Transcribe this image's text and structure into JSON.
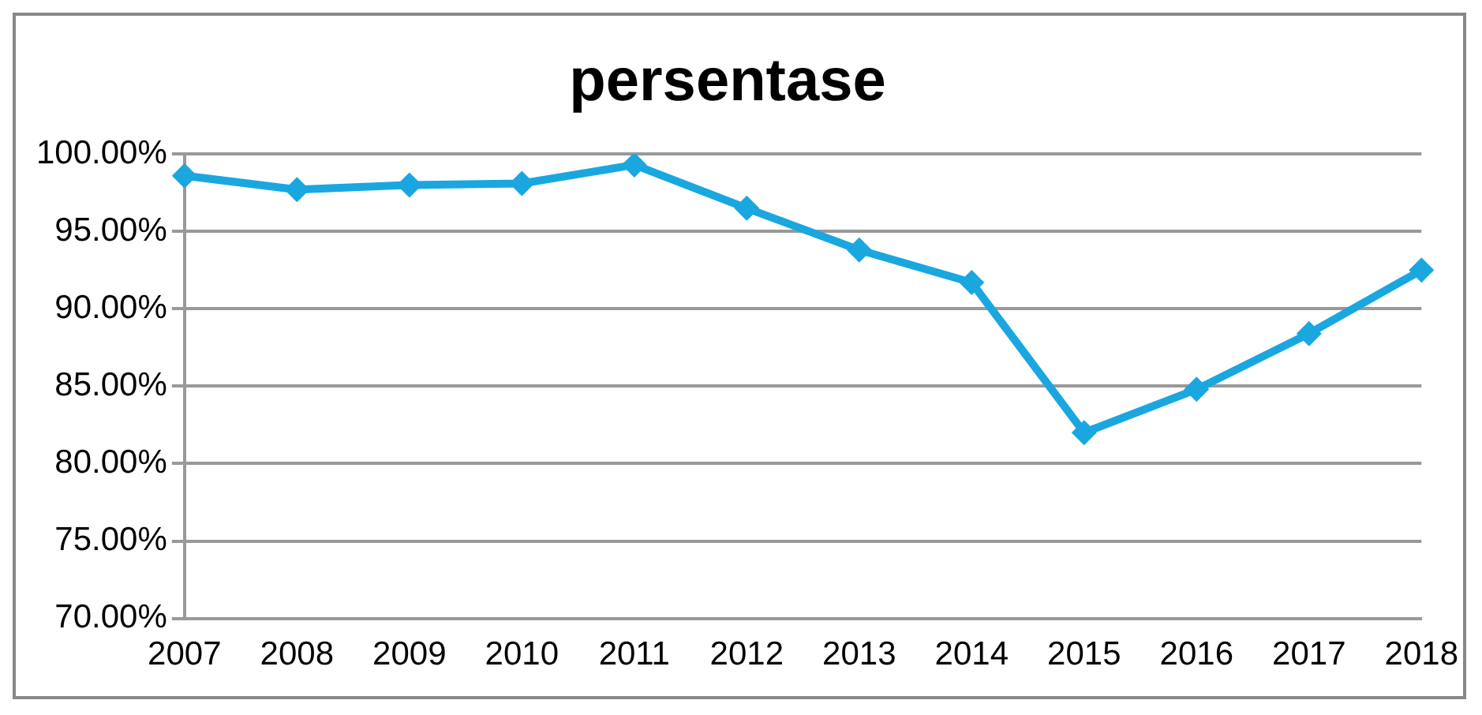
{
  "chart_data": {
    "type": "line",
    "title": "persentase",
    "categories": [
      "2007",
      "2008",
      "2009",
      "2010",
      "2011",
      "2012",
      "2013",
      "2014",
      "2015",
      "2016",
      "2017",
      "2018"
    ],
    "series": [
      {
        "color": "#1aa7e0",
        "values": [
          98.6,
          97.7,
          98.0,
          98.1,
          99.3,
          96.5,
          93.8,
          91.7,
          82.0,
          84.8,
          88.4,
          92.5
        ]
      }
    ],
    "ylim": [
      70,
      100
    ],
    "yticks": [
      {
        "value": 70,
        "label": "70.00%"
      },
      {
        "value": 75,
        "label": "75.00%"
      },
      {
        "value": 80,
        "label": "80.00%"
      },
      {
        "value": 85,
        "label": "85.00%"
      },
      {
        "value": 90,
        "label": "90.00%"
      },
      {
        "value": 95,
        "label": "95.00%"
      },
      {
        "value": 100,
        "label": "100.00%"
      }
    ],
    "grid": "y",
    "legend": false,
    "marker": "diamond",
    "line_style": "solid"
  }
}
